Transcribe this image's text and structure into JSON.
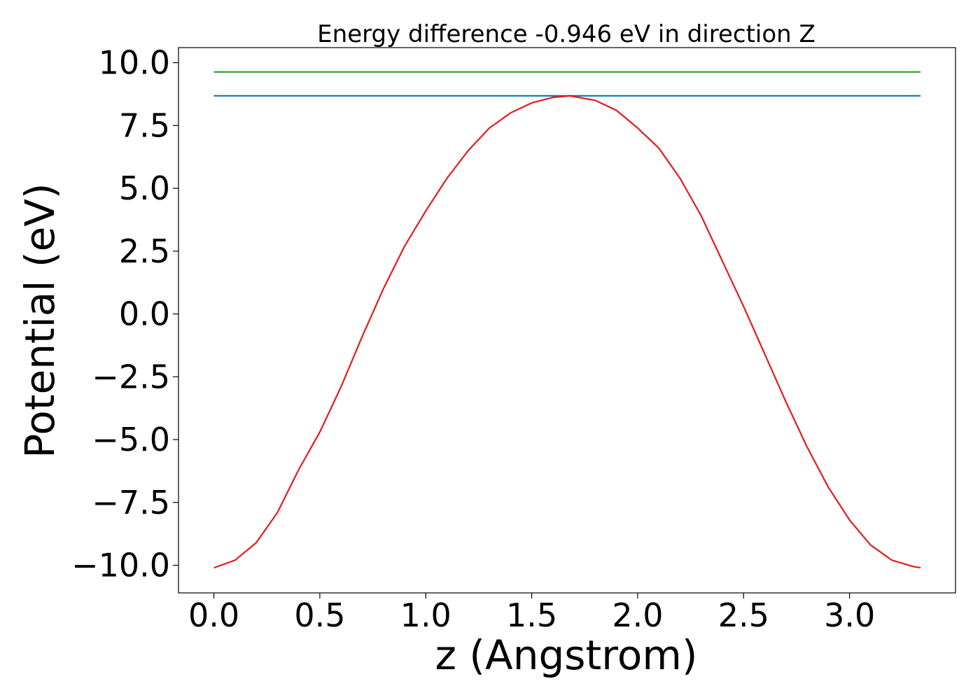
{
  "chart_data": {
    "type": "line",
    "title": "Energy difference -0.946 eV in direction Z",
    "xlabel": "z (Angstrom)",
    "ylabel": "Potential (eV)",
    "xlim": [
      -0.167,
      3.5
    ],
    "ylim": [
      -11.1,
      10.6
    ],
    "xticks": [
      0.0,
      0.5,
      1.0,
      1.5,
      2.0,
      2.5,
      3.0
    ],
    "xtick_labels": [
      "0.0",
      "0.5",
      "1.0",
      "1.5",
      "2.0",
      "2.5",
      "3.0"
    ],
    "yticks": [
      10.0,
      7.5,
      5.0,
      2.5,
      0.0,
      -2.5,
      -5.0,
      -7.5,
      -10.0
    ],
    "ytick_labels": [
      "10.0",
      "7.5",
      "5.0",
      "2.5",
      "0.0",
      "−2.5",
      "−5.0",
      "−7.5",
      "−10.0"
    ],
    "grid": false,
    "series": [
      {
        "color": "#2ca02c",
        "x": [
          0.0,
          3.335
        ],
        "y": [
          9.63,
          9.63
        ]
      },
      {
        "color": "#1f77b4",
        "x": [
          0.0,
          3.335
        ],
        "y": [
          8.68,
          8.68
        ]
      },
      {
        "color": "#e41a1c",
        "x": [
          0.0,
          0.1,
          0.2,
          0.3,
          0.4,
          0.5,
          0.6,
          0.7,
          0.8,
          0.9,
          1.0,
          1.1,
          1.2,
          1.3,
          1.4,
          1.5,
          1.6,
          1.68,
          1.8,
          1.9,
          2.0,
          2.1,
          2.2,
          2.3,
          2.4,
          2.5,
          2.6,
          2.7,
          2.8,
          2.9,
          3.0,
          3.1,
          3.2,
          3.3,
          3.335
        ],
        "y": [
          -10.1,
          -9.8,
          -9.1,
          -7.9,
          -6.2,
          -4.7,
          -2.9,
          -0.9,
          1.0,
          2.7,
          4.1,
          5.4,
          6.5,
          7.4,
          8.0,
          8.4,
          8.62,
          8.68,
          8.5,
          8.1,
          7.4,
          6.6,
          5.4,
          3.9,
          2.1,
          0.3,
          -1.6,
          -3.5,
          -5.3,
          -6.9,
          -8.2,
          -9.2,
          -9.8,
          -10.05,
          -10.1
        ]
      }
    ]
  }
}
